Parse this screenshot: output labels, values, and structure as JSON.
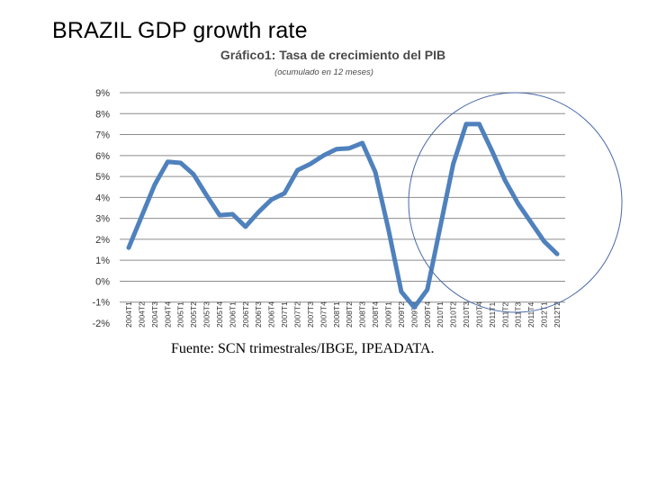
{
  "slide": {
    "title": "BRAZIL GDP growth rate"
  },
  "chart_data": {
    "type": "line",
    "title": "Gráfico1: Tasa de crecimiento del PIB",
    "subtitle": "(ocumulado en 12 meses)",
    "source": "Fuente: SCN trimestrales/IBGE, IPEADATA.",
    "xlabel": "",
    "ylabel": "",
    "ylim": [
      -2,
      9
    ],
    "yticks": [
      9,
      8,
      7,
      6,
      5,
      4,
      3,
      2,
      1,
      0,
      -1,
      -2
    ],
    "ytick_labels": [
      "9%",
      "8%",
      "7%",
      "6%",
      "5%",
      "4%",
      "3%",
      "2%",
      "1%",
      "0%",
      "-1%",
      "-2%"
    ],
    "grid": true,
    "categories": [
      "2004T1",
      "2004T2",
      "2004T3",
      "2004T4",
      "2005T1",
      "2005T2",
      "2005T3",
      "2005T4",
      "2006T1",
      "2006T2",
      "2006T3",
      "2006T4",
      "2007T1",
      "2007T2",
      "2007T3",
      "2007T4",
      "2008T1",
      "2008T2",
      "2008T3",
      "2008T4",
      "2009T1",
      "2009T2",
      "2009T3",
      "2009T4",
      "2010T1",
      "2010T2",
      "2010T3",
      "2010T4",
      "2011T1",
      "2011T2",
      "2011T3",
      "2011T4",
      "2012T1",
      "2012T2"
    ],
    "series": [
      {
        "name": "Tasa de crecimiento del PIB",
        "color": "#4f81bd",
        "values": [
          1.6,
          3.1,
          4.6,
          5.7,
          5.65,
          5.1,
          4.1,
          3.15,
          3.2,
          2.6,
          3.3,
          3.9,
          4.2,
          5.3,
          5.6,
          6.0,
          6.3,
          6.35,
          6.6,
          5.2,
          2.5,
          -0.5,
          -1.25,
          -0.4,
          2.6,
          5.6,
          7.5,
          7.5,
          6.2,
          4.8,
          3.7,
          2.8,
          1.9,
          1.3
        ]
      }
    ],
    "annotations": [
      {
        "type": "ellipse",
        "label": "highlight",
        "from": "2010T3",
        "to": "2012T2"
      }
    ]
  }
}
